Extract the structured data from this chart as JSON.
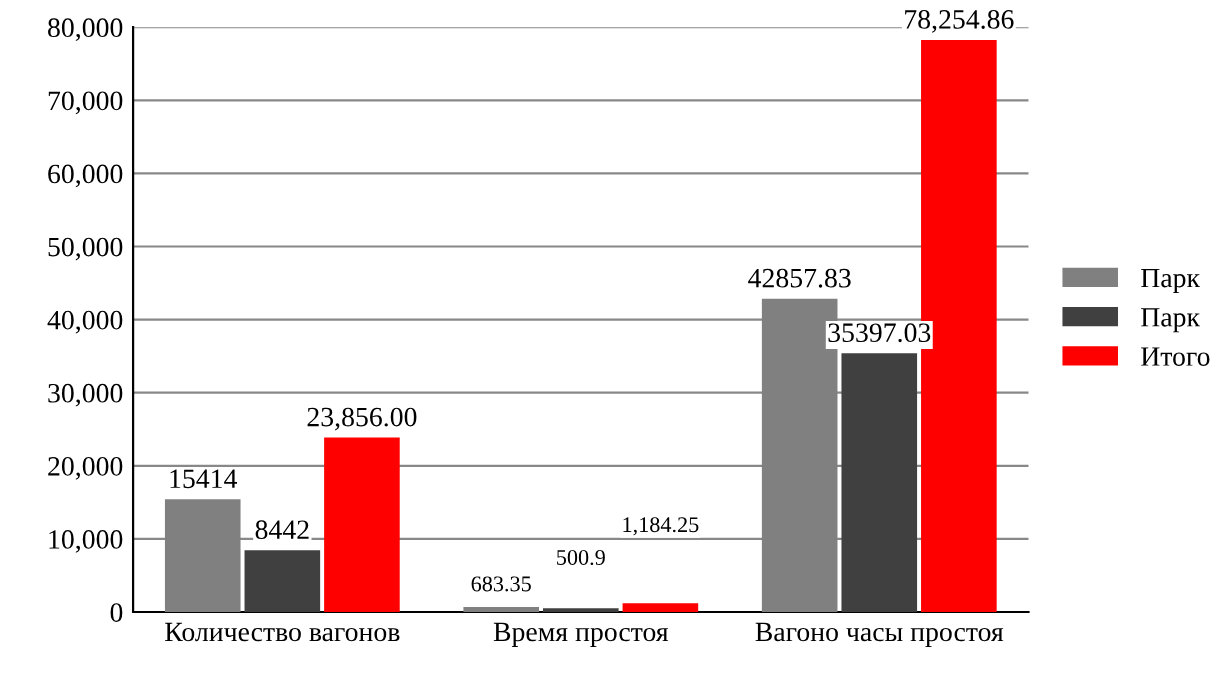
{
  "chart_data": {
    "type": "bar",
    "categories": [
      "Количество вагонов",
      "Время простоя",
      "Вагоно часы простоя"
    ],
    "series": [
      {
        "name": "Парк",
        "color": "#808080",
        "values": [
          15414,
          683.35,
          42857.83
        ],
        "value_labels": [
          "15414",
          "683.35",
          "42857.83"
        ]
      },
      {
        "name": "Парк",
        "color": "#404040",
        "values": [
          8442,
          500.9,
          35397.03
        ],
        "value_labels": [
          "8442",
          "500.9",
          "35397.03"
        ]
      },
      {
        "name": "Итого",
        "color": "#ff0000",
        "values": [
          23856,
          1184.25,
          78254.86
        ],
        "value_labels": [
          "23,856.00",
          "1,184.25",
          "78,254.86"
        ]
      }
    ],
    "ylim": [
      0,
      80000
    ],
    "yticks": [
      {
        "value": 0,
        "label": "0"
      },
      {
        "value": 10000,
        "label": "10,000"
      },
      {
        "value": 20000,
        "label": "20,000"
      },
      {
        "value": 30000,
        "label": "30,000"
      },
      {
        "value": 40000,
        "label": "40,000"
      },
      {
        "value": 50000,
        "label": "50,000"
      },
      {
        "value": 60000,
        "label": "60,000"
      },
      {
        "value": 70000,
        "label": "70,000"
      },
      {
        "value": 80000,
        "label": "80,000"
      }
    ],
    "grid": "y",
    "legend": "right"
  }
}
